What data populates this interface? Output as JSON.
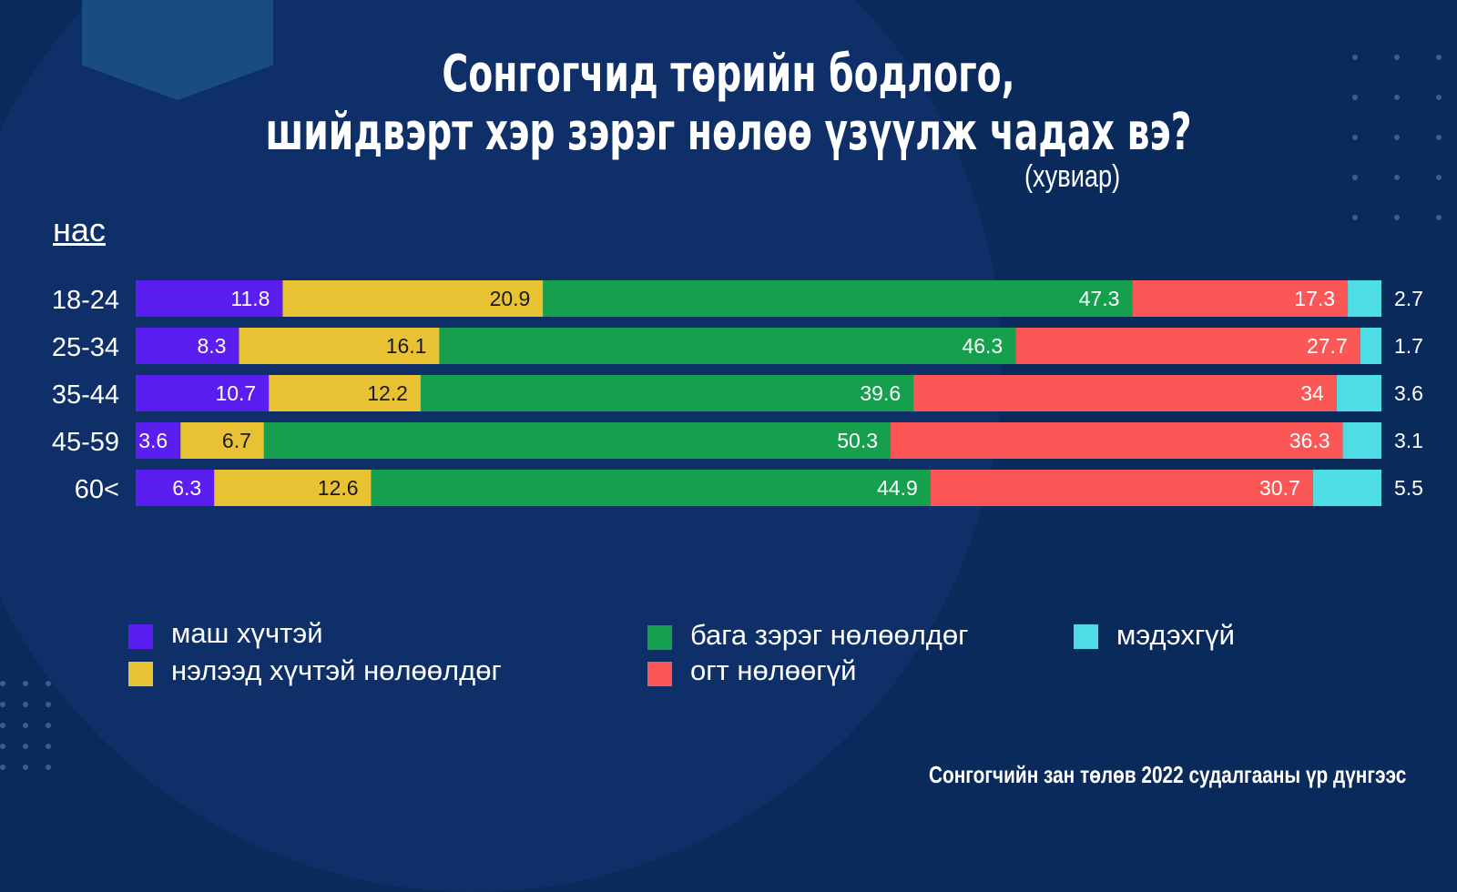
{
  "title_line1": "Сонгогчид төрийн бодлого,",
  "title_line2": "шийдвэрт хэр зэрэг нөлөө үзүүлж чадах вэ?",
  "unit": "(хувиар)",
  "age_heading": "нас",
  "source": "Сонгогчийн зан төлөв 2022 судалгааны үр дүнгээс",
  "colors": {
    "background": "#0b2a5c",
    "very_strong": "#5b1ef0",
    "fairly_strong": "#e8c233",
    "little": "#16a04e",
    "none": "#fc5757",
    "dont_know": "#4fdde5"
  },
  "chart_data": {
    "type": "bar",
    "orientation": "horizontal",
    "stacked": true,
    "categories": [
      "18-24",
      "25-34",
      "35-44",
      "45-59",
      "60<"
    ],
    "series": [
      {
        "name": "маш хүчтэй",
        "values": [
          11.8,
          8.3,
          10.7,
          3.6,
          6.3
        ],
        "color": "#5b1ef0"
      },
      {
        "name": "нэлээд хүчтэй нөлөөлдөг",
        "values": [
          20.9,
          16.1,
          12.2,
          6.7,
          12.6
        ],
        "color": "#e8c233"
      },
      {
        "name": "бага зэрэг нөлөөлдөг",
        "values": [
          47.3,
          46.3,
          39.6,
          50.3,
          44.9
        ],
        "color": "#16a04e"
      },
      {
        "name": "огт нөлөөгүй",
        "values": [
          17.3,
          27.7,
          34,
          36.3,
          30.7
        ],
        "color": "#fc5757"
      },
      {
        "name": "мэдэхгүй",
        "values": [
          2.7,
          1.7,
          3.6,
          3.1,
          5.5
        ],
        "color": "#4fdde5"
      }
    ],
    "value_labels": [
      [
        "11.8",
        "20.9",
        "47.3",
        "17.3",
        "2.7"
      ],
      [
        "8.3",
        "16.1",
        "46.3",
        "27.7",
        "1.7"
      ],
      [
        "10.7",
        "12.2",
        "39.6",
        "34",
        "3.6"
      ],
      [
        "3.6",
        "6.7",
        "50.3",
        "36.3",
        "3.1"
      ],
      [
        "6.3",
        "12.6",
        "44.9",
        "30.7",
        "5.5"
      ]
    ]
  },
  "legend": [
    {
      "label": "маш хүчтэй",
      "color": "#5b1ef0"
    },
    {
      "label": "нэлээд хүчтэй нөлөөлдөг",
      "color": "#e8c233"
    },
    {
      "label": "бага зэрэг нөлөөлдөг",
      "color": "#16a04e"
    },
    {
      "label": "огт нөлөөгүй",
      "color": "#fc5757"
    },
    {
      "label": "мэдэхгүй",
      "color": "#4fdde5"
    }
  ]
}
